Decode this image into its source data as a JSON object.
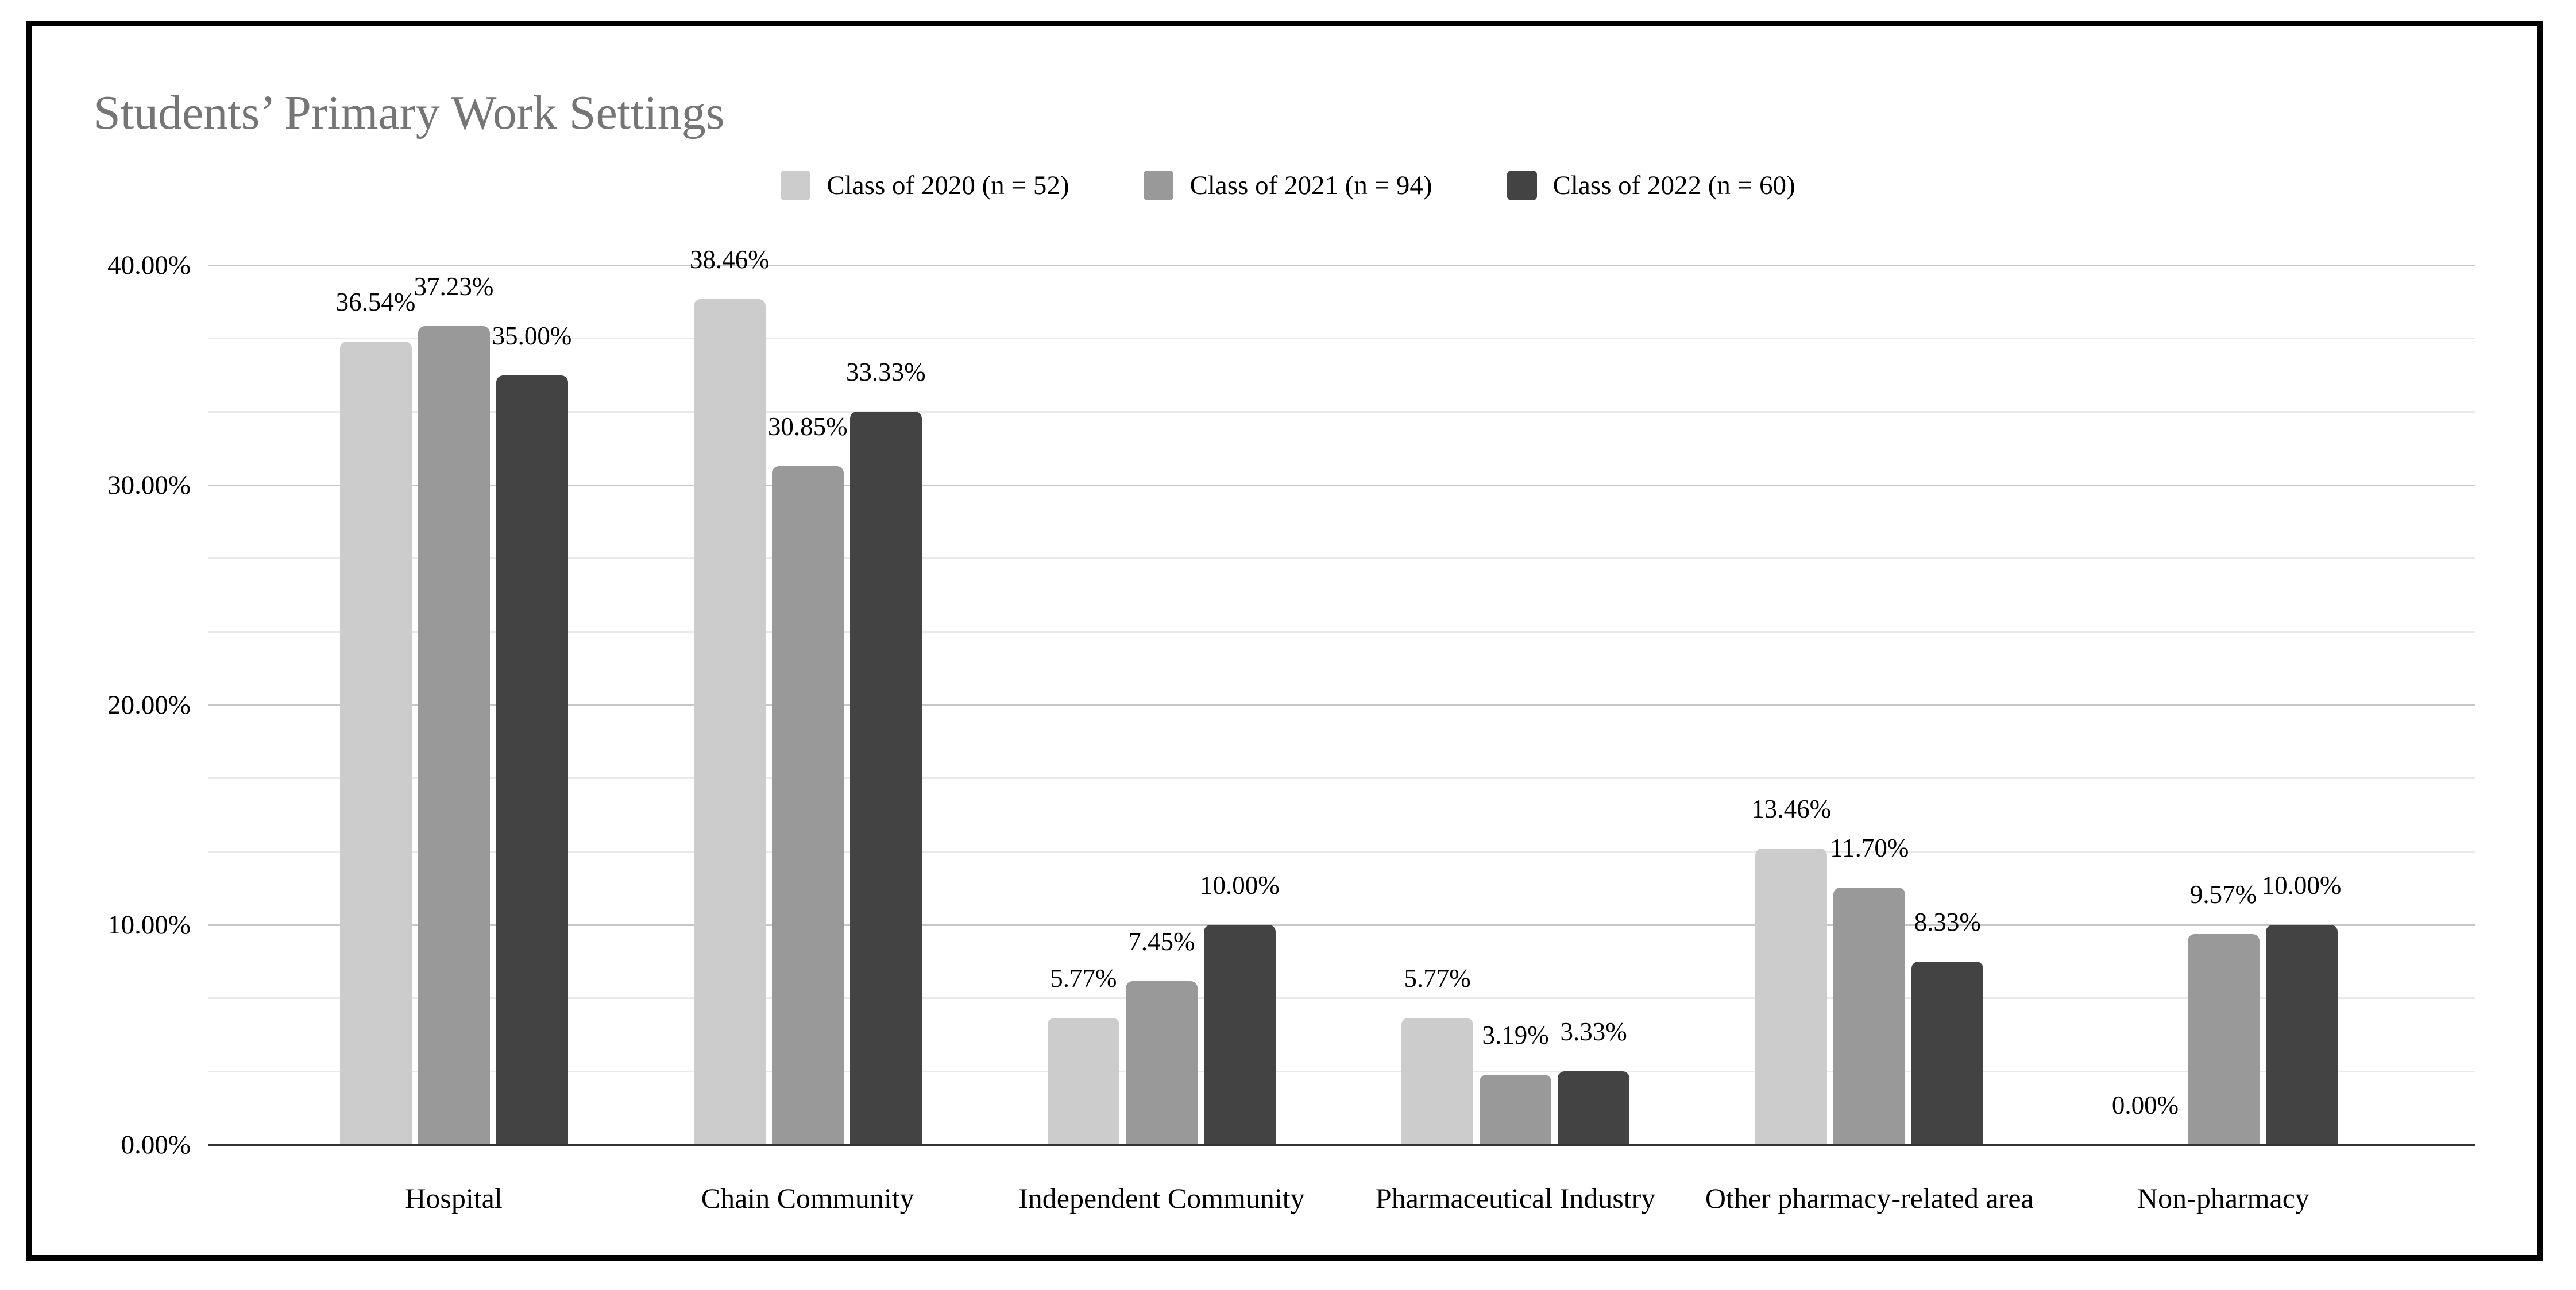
{
  "chart_data": {
    "type": "bar",
    "title": "Students’ Primary Work Settings",
    "categories": [
      "Hospital",
      "Chain Community",
      "Independent Community",
      "Pharmaceutical Industry",
      "Other pharmacy-related area",
      "Non-pharmacy"
    ],
    "series": [
      {
        "name": "Class of 2020 (n = 52)",
        "color": "#cccccc",
        "values": [
          36.54,
          38.46,
          5.77,
          5.77,
          13.46,
          0.0
        ],
        "labels": [
          "36.54%",
          "38.46%",
          "5.77%",
          "5.77%",
          "13.46%",
          "0.00%"
        ]
      },
      {
        "name": "Class of 2021 (n = 94)",
        "color": "#999999",
        "values": [
          37.23,
          30.85,
          7.45,
          3.19,
          11.7,
          9.57
        ],
        "labels": [
          "37.23%",
          "30.85%",
          "7.45%",
          "3.19%",
          "11.70%",
          "9.57%"
        ]
      },
      {
        "name": "Class of 2022 (n = 60)",
        "color": "#434343",
        "values": [
          35.0,
          33.33,
          10.0,
          3.33,
          8.33,
          10.0
        ],
        "labels": [
          "35.00%",
          "33.33%",
          "10.00%",
          "3.33%",
          "8.33%",
          "10.00%"
        ]
      }
    ],
    "y_axis": {
      "min": 0,
      "max": 40,
      "ticks": [
        {
          "value": 0,
          "label": "0.00%"
        },
        {
          "value": 10,
          "label": "10.00%"
        },
        {
          "value": 20,
          "label": "20.00%"
        },
        {
          "value": 30,
          "label": "30.00%"
        },
        {
          "value": 40,
          "label": "40.00%"
        }
      ],
      "minor_divisions_per_major": 3
    },
    "legend_position": "top",
    "gridlines": true,
    "colors": {
      "title_text": "#757575",
      "axis_line": "#333333",
      "major_gridline": "#c7c7c7",
      "minor_gridline": "#e9e9e9",
      "label_text": "#000000",
      "frame_border": "#000000"
    }
  }
}
